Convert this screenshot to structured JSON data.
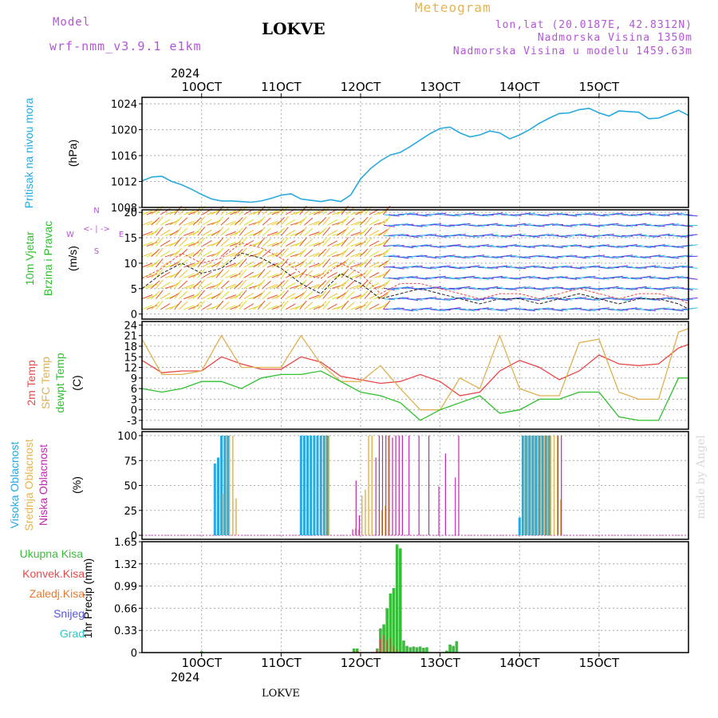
{
  "header": {
    "model_label": "Model",
    "model_name": "wrf-nmm_v3.9.1 e1km",
    "station": "LOKVE",
    "meteogram": "Meteogram",
    "lonlat": "lon,lat (20.0187E, 42.8312N)",
    "altitude": "Nadmorska Visina 1350m",
    "model_altitude": "Nadmorska Visina u modelu 1459.63m",
    "year_top": "2024",
    "year_bottom": "2024",
    "footer_station": "LOKVE",
    "watermark": "made by Angel"
  },
  "colors": {
    "pressure": "#29a9e0",
    "cloud_high": "#29a9e0",
    "cloud_mid": "#e4b455",
    "cloud_low": "#c02ab0",
    "temp2m": "#e84848",
    "sfc": "#e0b050",
    "dewpt": "#2ec02e",
    "precip": "#3cbc3c",
    "conv": "#e84848",
    "frozen": "#e87a30",
    "snow": "#5555dd",
    "graupel": "#33c8c8"
  },
  "chart_data": {
    "type": "line",
    "x_dates": [
      "10OCT",
      "11OCT",
      "12OCT",
      "13OCT",
      "14OCT",
      "15OCT"
    ],
    "x_hours_range": [
      -18,
      147
    ],
    "panels": [
      {
        "id": "pressure",
        "ylabel_lines": [
          "Pritisak na nivou mora",
          "(hPa)"
        ],
        "yticks": [
          "1008",
          "1012",
          "1016",
          "1020",
          "1024"
        ],
        "ylim": [
          1008,
          1025
        ],
        "series": [
          {
            "x": [
              -18,
              -15,
              -12,
              -9,
              -6,
              -3,
              0,
              3,
              6,
              9,
              12,
              15,
              18,
              21,
              24,
              27,
              30,
              33,
              36,
              39,
              42,
              45,
              48,
              51,
              54,
              57,
              60,
              63,
              66,
              69,
              72,
              75,
              78,
              81,
              84,
              87,
              90,
              93,
              96,
              99,
              102,
              105,
              108,
              111,
              114,
              117,
              120,
              123,
              126,
              129,
              132,
              135,
              138,
              141,
              144,
              147
            ],
            "y": [
              1012.1,
              1012.7,
              1012.8,
              1012.0,
              1011.5,
              1010.8,
              1010.0,
              1009.3,
              1009.0,
              1009.0,
              1008.9,
              1008.8,
              1009.0,
              1009.4,
              1009.9,
              1010.1,
              1009.3,
              1009.1,
              1008.9,
              1009.2,
              1008.9,
              1009.9,
              1012.4,
              1014.0,
              1015.2,
              1016.1,
              1016.5,
              1017.4,
              1018.4,
              1019.4,
              1020.2,
              1020.4,
              1019.5,
              1018.9,
              1019.2,
              1019.8,
              1019.5,
              1018.6,
              1019.2,
              1020.0,
              1021.0,
              1021.8,
              1022.5,
              1022.6,
              1023.1,
              1023.3,
              1022.6,
              1022.1,
              1022.9,
              1022.8,
              1022.7,
              1021.7,
              1021.8,
              1022.4,
              1023.0,
              1022.2
            ]
          }
        ]
      },
      {
        "id": "wind",
        "ylabel_lines": [
          "10m Vjetar",
          "Brzina i Pravac",
          "(m/s)"
        ],
        "compass": [
          "N",
          "<- | ->",
          "E",
          "W",
          "S"
        ],
        "yticks": [
          "0",
          "5",
          "10",
          "15",
          "20"
        ],
        "ylim": [
          -1,
          20.5
        ],
        "series": [
          {
            "x": [
              -18,
              -12,
              -6,
              0,
              6,
              12,
              18,
              24,
              30,
              36,
              42,
              48,
              54,
              60,
              66,
              72,
              78,
              84,
              90,
              96,
              102,
              108,
              114,
              120,
              126,
              132,
              138,
              144,
              147
            ],
            "y": [
              5,
              8,
              10,
              8,
              9,
              12,
              11,
              9,
              6,
              4,
              8,
              6,
              3,
              4,
              5,
              4,
              3,
              2,
              3,
              3,
              2,
              3,
              4,
              3,
              2,
              3,
              3,
              2,
              1
            ]
          },
          {
            "x": [
              -18,
              -12,
              -6,
              0,
              6,
              12,
              18,
              24,
              30,
              36,
              42,
              48,
              54,
              60,
              66,
              72,
              78,
              84,
              90,
              96,
              102,
              108,
              114,
              120,
              126,
              132,
              138,
              144,
              147
            ],
            "y": [
              7,
              9,
              12,
              10,
              11,
              14,
              13,
              11,
              8,
              7,
              10,
              8,
              4,
              6,
              6,
              5,
              4,
              3,
              4,
              4,
              3,
              4,
              5,
              4,
              3,
              4,
              4,
              3,
              2
            ]
          }
        ]
      },
      {
        "id": "temperature",
        "ylabel_lines": [
          "2m Temp",
          "SFC Temp",
          "dewpt Temp",
          "(C)"
        ],
        "yticks": [
          "-3",
          "0",
          "3",
          "6",
          "9",
          "12",
          "15",
          "18",
          "21",
          "24"
        ],
        "ylim": [
          -5.5,
          25
        ],
        "series": [
          {
            "name": "2m Temp",
            "x": [
              -18,
              -12,
              -6,
              0,
              6,
              12,
              18,
              24,
              30,
              36,
              42,
              48,
              54,
              60,
              66,
              72,
              78,
              84,
              90,
              96,
              102,
              108,
              114,
              120,
              126,
              132,
              138,
              144,
              147
            ],
            "y": [
              14,
              10.5,
              11,
              11,
              15,
              13,
              11.5,
              11.5,
              15,
              13.5,
              9.5,
              8.5,
              7.5,
              8,
              10,
              8,
              4,
              5,
              11,
              14,
              12,
              8.5,
              11,
              15.5,
              13,
              12.5,
              13,
              17.5,
              18.5
            ]
          },
          {
            "name": "SFC Temp",
            "x": [
              -18,
              -12,
              -6,
              0,
              6,
              12,
              18,
              24,
              30,
              36,
              42,
              48,
              54,
              60,
              66,
              72,
              78,
              84,
              90,
              96,
              102,
              108,
              114,
              120,
              126,
              132,
              138,
              144,
              147
            ],
            "y": [
              20,
              10,
              10,
              11,
              21,
              12,
              12,
              12,
              21,
              13,
              8,
              8,
              12.5,
              6,
              0,
              0,
              9,
              6,
              21,
              6,
              4,
              4,
              19,
              20,
              5,
              3,
              3,
              22,
              23
            ]
          },
          {
            "name": "dewpt Temp",
            "x": [
              -18,
              -12,
              -6,
              0,
              6,
              12,
              18,
              24,
              30,
              36,
              42,
              48,
              54,
              60,
              66,
              72,
              78,
              84,
              90,
              96,
              102,
              108,
              114,
              120,
              126,
              132,
              138,
              144,
              147
            ],
            "y": [
              6,
              5,
              6,
              8,
              8,
              6,
              9,
              10,
              10,
              11,
              8,
              5,
              4,
              2,
              -3,
              0,
              2,
              4,
              -1,
              0,
              3,
              3,
              5,
              5,
              -2,
              -3,
              -3,
              9,
              9
            ]
          }
        ]
      },
      {
        "id": "clouds",
        "ylabel_lines": [
          "Visoka Oblacnost",
          "Srednja Oblacnost",
          "Niska Oblacnost",
          "(%)"
        ],
        "yticks": [
          "0",
          "25",
          "50",
          "75",
          "100"
        ],
        "ylim": [
          -4,
          104
        ],
        "high": {
          "x": [
            4,
            5,
            6,
            7,
            8,
            30,
            31,
            32,
            33,
            34,
            35,
            36,
            37,
            38,
            96,
            97,
            98,
            99,
            100,
            101,
            102,
            103,
            104,
            105
          ],
          "y": [
            72,
            78,
            100,
            100,
            100,
            100,
            100,
            100,
            100,
            100,
            100,
            100,
            100,
            100,
            18,
            100,
            100,
            100,
            100,
            100,
            100,
            100,
            100,
            100
          ]
        },
        "mid": {
          "x": [
            6,
            7,
            8,
            9,
            10,
            37,
            38,
            46,
            47,
            48,
            49,
            50,
            51,
            54,
            55,
            56,
            97,
            98,
            99,
            100,
            101,
            102,
            103,
            104,
            105,
            106,
            107,
            108
          ],
          "y": [
            42,
            100,
            100,
            100,
            37,
            100,
            100,
            7,
            6,
            40,
            46,
            100,
            100,
            25,
            30,
            100,
            100,
            100,
            100,
            100,
            100,
            100,
            100,
            100,
            100,
            100,
            100,
            36
          ]
        },
        "low": {
          "x": [
            45,
            46,
            47,
            52,
            53,
            54,
            55,
            56,
            57,
            58,
            59,
            60,
            62,
            65,
            68,
            71,
            73,
            76,
            77,
            107,
            108
          ],
          "y": [
            6,
            55,
            20,
            78,
            100,
            100,
            100,
            100,
            98,
            100,
            100,
            100,
            100,
            100,
            100,
            49,
            82,
            58,
            100,
            100,
            100
          ]
        }
      },
      {
        "id": "precip",
        "ylabel_lines": [
          "1hr Precip (mm)"
        ],
        "yticks": [
          "0",
          "0.33",
          "0.66",
          "0.99",
          "1.32",
          "1.65"
        ],
        "ylim": [
          0,
          1.65
        ],
        "total": {
          "x": [
            0,
            46,
            47,
            53,
            54,
            55,
            56,
            57,
            58,
            59,
            60,
            61,
            62,
            63,
            64,
            65,
            66,
            67,
            68,
            74,
            75,
            76,
            77
          ],
          "y": [
            0.02,
            0.06,
            0.06,
            0.06,
            0.36,
            0.42,
            0.66,
            0.88,
            0.96,
            1.61,
            1.55,
            0.18,
            0.1,
            0.08,
            0.09,
            0.08,
            0.09,
            0.07,
            0.08,
            0.03,
            0.12,
            0.1,
            0.17
          ]
        },
        "conv": {
          "x": [
            46,
            47,
            53,
            54,
            55,
            56,
            57,
            58,
            59
          ],
          "y": [
            0.03,
            0.03,
            0.03,
            0.2,
            0.26,
            0.18,
            0.22,
            0.1,
            0.05
          ]
        }
      }
    ]
  },
  "legend_clouds": [
    "Visoka Oblacnost",
    "Srednja Oblacnost",
    "Niska Oblacnost"
  ],
  "legend_precip": [
    "Ukupna Kisa",
    "Konvek.Kisa",
    "Zaledj.Kisa",
    "Snijeg",
    "Grad"
  ],
  "unit_labels": {
    "hpa": "(hPa)",
    "ms": "(m/s)",
    "c": "(C)",
    "pct": "(%)"
  }
}
